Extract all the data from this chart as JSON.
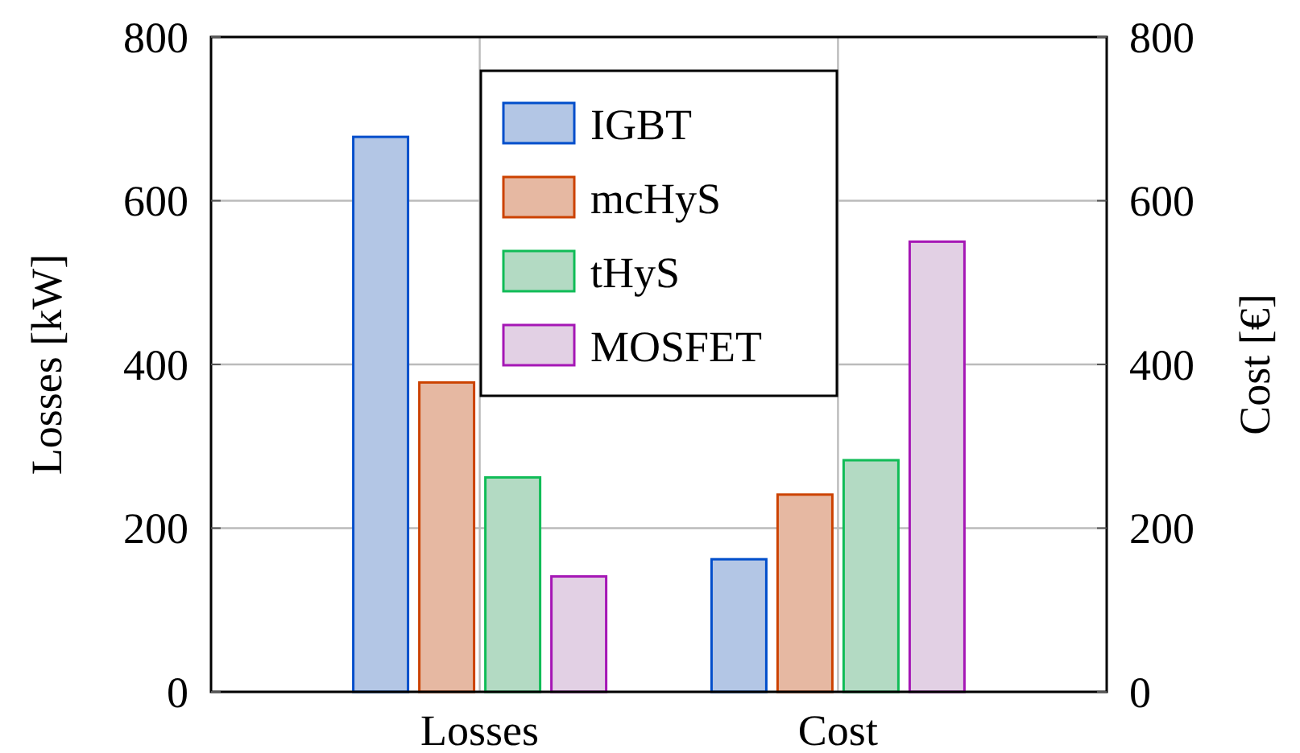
{
  "chart_data": {
    "type": "bar",
    "categories": [
      "Losses",
      "Cost"
    ],
    "series": [
      {
        "name": "IGBT",
        "color": "#b3c6e5",
        "values": [
          678,
          162
        ]
      },
      {
        "name": "mcHyS",
        "color": "#e6b8a2",
        "values": [
          378,
          241
        ]
      },
      {
        "name": "tHyS",
        "color": "#b3dac3",
        "values": [
          262,
          283
        ]
      },
      {
        "name": "MOSFET",
        "color": "#e2d0e4",
        "values": [
          141,
          550
        ]
      }
    ],
    "ylabel": "Losses [kW]",
    "y2label": "Cost [€]",
    "ylim": [
      0,
      800
    ],
    "yticks": [
      0,
      200,
      400,
      600,
      800
    ],
    "y2lim": [
      0,
      800
    ],
    "y2ticks": [
      0,
      200,
      400,
      600,
      800
    ],
    "grid": true,
    "legend": "top"
  }
}
